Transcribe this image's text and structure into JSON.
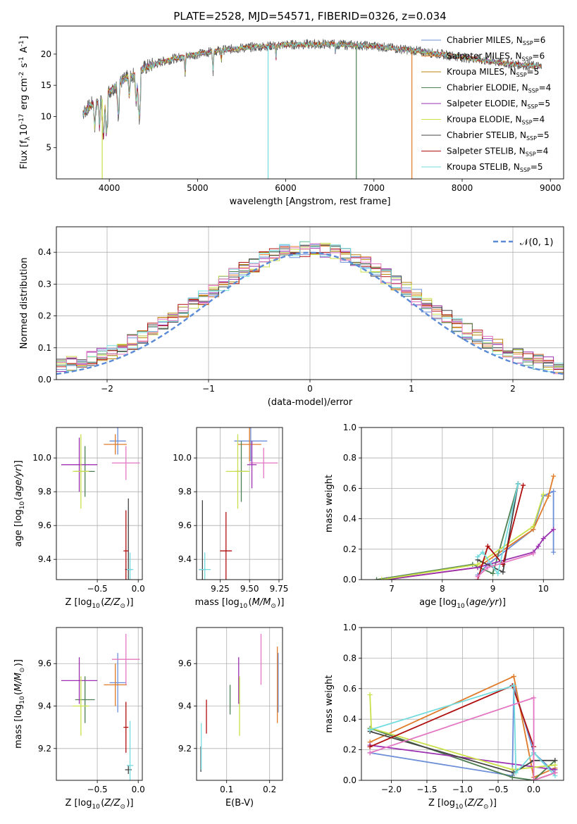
{
  "title": "PLATE=2528, MJD=54571, FIBERID=0326, z=0.034",
  "models": [
    {
      "name": "Chabrier MILES",
      "nssp": "6",
      "color": "#6c8fd8"
    },
    {
      "name": "Salpeter MILES",
      "nssp": "6",
      "color": "#e07b2a"
    },
    {
      "name": "Kroupa MILES",
      "nssp": "5",
      "color": "#b8860b"
    },
    {
      "name": "Chabrier ELODIE",
      "nssp": "4",
      "color": "#4e7f52"
    },
    {
      "name": "Salpeter ELODIE",
      "nssp": "5",
      "color": "#9b30b0"
    },
    {
      "name": "Kroupa ELODIE",
      "nssp": "4",
      "color": "#c9e04a"
    },
    {
      "name": "Chabrier STELIB",
      "nssp": "5",
      "color": "#444444"
    },
    {
      "name": "Salpeter STELIB",
      "nssp": "4",
      "color": "#b01010"
    },
    {
      "name": "Kroupa STELIB",
      "nssp": "5",
      "color": "#74dcde"
    }
  ],
  "chart_data": [
    {
      "type": "line",
      "id": "spectrum",
      "xlabel": "wavelength [Angstrom, rest frame]",
      "ylabel": "Flux [f$_\\lambda$10$^{-17}$ erg cm$^{-2}$ s$^{-1}$ A$^{-1}$]",
      "xlim": [
        3400,
        9150
      ],
      "ylim": [
        0,
        24.5
      ],
      "xticks": [
        4000,
        5000,
        6000,
        7000,
        8000,
        9000
      ],
      "yticks": [
        5,
        10,
        15,
        20
      ],
      "continuum": [
        [
          3700,
          10.5
        ],
        [
          3800,
          12.0
        ],
        [
          3900,
          12.5
        ],
        [
          4000,
          14.0
        ],
        [
          4100,
          15.2
        ],
        [
          4200,
          16.2
        ],
        [
          4300,
          16.8
        ],
        [
          4400,
          17.8
        ],
        [
          4600,
          18.8
        ],
        [
          4800,
          19.5
        ],
        [
          5000,
          20.0
        ],
        [
          5200,
          20.5
        ],
        [
          5500,
          21.0
        ],
        [
          6000,
          21.5
        ],
        [
          6500,
          21.6
        ],
        [
          7000,
          21.3
        ],
        [
          7500,
          20.5
        ],
        [
          8000,
          19.5
        ],
        [
          8500,
          18.5
        ],
        [
          8900,
          18.0
        ]
      ],
      "absorption_features": [
        [
          3730,
          10.0
        ],
        [
          3835,
          7.5
        ],
        [
          3889,
          8.0
        ],
        [
          3933,
          6.0
        ],
        [
          3969,
          6.5
        ],
        [
          4102,
          9.5
        ],
        [
          4227,
          12.5
        ],
        [
          4305,
          11.5
        ],
        [
          4340,
          9.0
        ],
        [
          4861,
          16.5
        ],
        [
          5175,
          17.0
        ],
        [
          5270,
          18.5
        ],
        [
          5890,
          19.0
        ],
        [
          6563,
          20.0
        ]
      ],
      "spikes": [
        [
          3920,
          0.0,
          "#c9e04a"
        ],
        [
          5800,
          0.0,
          "#74dcde"
        ],
        [
          6800,
          0.0,
          "#4e7f52"
        ],
        [
          7430,
          0.0,
          "#e07b2a"
        ]
      ]
    },
    {
      "type": "line",
      "id": "residuals",
      "xlabel": "(data-model)/error",
      "ylabel": "Normed distribution",
      "xlim": [
        -2.5,
        2.5
      ],
      "ylim": [
        0,
        0.48
      ],
      "xticks": [
        -2,
        -1,
        0,
        1,
        2
      ],
      "xticklabels": [
        "−2",
        "−1",
        "0",
        "1",
        "2"
      ],
      "yticks": [
        0.0,
        0.1,
        0.2,
        0.3,
        0.4
      ],
      "yticklabels": [
        "0.0",
        "0.1",
        "0.2",
        "0.3",
        "0.4"
      ],
      "legend": "$\\mathcal{N}(0, 1)$",
      "legend_position": "top-right",
      "bin_width": 0.1,
      "gaussian_peak": 0.399
    },
    {
      "type": "scatter",
      "id": "age_vs_Z",
      "xlabel": "Z [log$_{10}$($Z/Z_\\odot$)]",
      "ylabel": "age  [log$_{10}$($age/yr$)]",
      "xlim": [
        -1.0,
        0.05
      ],
      "ylim": [
        9.28,
        10.18
      ],
      "xticks": [
        -0.5,
        0.0
      ],
      "xticklabels": [
        "−0.5",
        "0.0"
      ],
      "yticks": [
        9.4,
        9.6,
        9.8,
        10.0
      ],
      "yticklabels": [
        "9.4",
        "9.6",
        "9.8",
        "10.0"
      ],
      "points": [
        {
          "x": -0.25,
          "y": 10.1,
          "xerr": 0.1,
          "yerr": 0.08,
          "color": "#6c8fd8"
        },
        {
          "x": -0.28,
          "y": 10.08,
          "xerr": 0.14,
          "yerr": 0.06,
          "color": "#e07b2a"
        },
        {
          "x": -0.15,
          "y": 9.97,
          "xerr": 0.17,
          "yerr": 0.1,
          "color": "#e377c2"
        },
        {
          "x": -0.65,
          "y": 9.92,
          "xerr": 0.12,
          "yerr": 0.15,
          "color": "#4e7f52"
        },
        {
          "x": -0.72,
          "y": 9.96,
          "xerr": 0.22,
          "yerr": 0.16,
          "color": "#9b30b0"
        },
        {
          "x": -0.7,
          "y": 9.92,
          "xerr": 0.1,
          "yerr": 0.22,
          "color": "#c9e04a"
        },
        {
          "x": -0.12,
          "y": 9.34,
          "xerr": 0.04,
          "yerr": 0.42,
          "color": "#444444"
        },
        {
          "x": -0.15,
          "y": 9.45,
          "xerr": 0.03,
          "yerr": 0.24,
          "color": "#b01010"
        },
        {
          "x": -0.1,
          "y": 9.34,
          "xerr": 0.04,
          "yerr": 0.1,
          "color": "#74dcde"
        }
      ]
    },
    {
      "type": "scatter",
      "id": "age_vs_mass",
      "xlabel": "mass [log$_{10}$($M/M_\\odot$)]",
      "ylabel": "",
      "xlim": [
        9.05,
        9.78
      ],
      "ylim": [
        9.28,
        10.18
      ],
      "xticks": [
        9.25,
        9.5,
        9.75
      ],
      "xticklabels": [
        "9.25",
        "9.50",
        "9.75"
      ],
      "yticks": [
        9.4,
        9.6,
        9.8,
        10.0
      ],
      "yticklabels": [
        "9.4",
        "9.6",
        "9.8",
        "10.0"
      ],
      "points": [
        {
          "x": 9.51,
          "y": 10.1,
          "xerr": 0.14,
          "yerr": 0.12,
          "color": "#6c8fd8"
        },
        {
          "x": 9.5,
          "y": 10.08,
          "xerr": 0.1,
          "yerr": 0.1,
          "color": "#e07b2a"
        },
        {
          "x": 9.62,
          "y": 9.97,
          "xerr": 0.12,
          "yerr": 0.09,
          "color": "#e377c2"
        },
        {
          "x": 9.43,
          "y": 9.92,
          "xerr": 0.05,
          "yerr": 0.18,
          "color": "#4e7f52"
        },
        {
          "x": 9.52,
          "y": 9.96,
          "xerr": 0.04,
          "yerr": 0.14,
          "color": "#9b30b0"
        },
        {
          "x": 9.4,
          "y": 9.92,
          "xerr": 0.1,
          "yerr": 0.22,
          "color": "#c9e04a"
        },
        {
          "x": 9.1,
          "y": 9.34,
          "xerr": 0.03,
          "yerr": 0.41,
          "color": "#444444"
        },
        {
          "x": 9.3,
          "y": 9.45,
          "xerr": 0.05,
          "yerr": 0.23,
          "color": "#b01010"
        },
        {
          "x": 9.12,
          "y": 9.34,
          "xerr": 0.05,
          "yerr": 0.1,
          "color": "#74dcde"
        }
      ]
    },
    {
      "type": "line",
      "id": "massweight_vs_age",
      "xlabel": "age  [log$_{10}$($age/yr$)]",
      "ylabel": "mass weight",
      "xlim": [
        6.4,
        10.4
      ],
      "ylim": [
        0,
        1.0
      ],
      "xticks": [
        7,
        8,
        9,
        10
      ],
      "yticks": [
        0.0,
        0.2,
        0.4,
        0.6,
        0.8,
        1.0
      ],
      "yticklabels": [
        "0.0",
        "0.2",
        "0.4",
        "0.6",
        "0.8",
        "1.0"
      ],
      "series": [
        {
          "color": "#6c8fd8",
          "points": [
            [
              8.7,
              0.03
            ],
            [
              8.9,
              0.1
            ],
            [
              9.8,
              0.33
            ],
            [
              10.0,
              0.55
            ],
            [
              10.2,
              0.58
            ],
            [
              10.2,
              0.18
            ]
          ]
        },
        {
          "color": "#e07b2a",
          "points": [
            [
              6.9,
              0.0
            ],
            [
              8.7,
              0.08
            ],
            [
              9.8,
              0.33
            ],
            [
              10.1,
              0.55
            ],
            [
              10.2,
              0.68
            ]
          ]
        },
        {
          "color": "#4e7f52",
          "points": [
            [
              6.7,
              0.0
            ],
            [
              8.6,
              0.1
            ],
            [
              9.0,
              0.04
            ],
            [
              9.5,
              0.63
            ]
          ]
        },
        {
          "color": "#9b30b0",
          "points": [
            [
              6.9,
              0.0
            ],
            [
              8.7,
              0.08
            ],
            [
              9.8,
              0.18
            ],
            [
              9.9,
              0.22
            ],
            [
              10.0,
              0.27
            ],
            [
              10.2,
              0.33
            ]
          ]
        },
        {
          "color": "#c9e04a",
          "points": [
            [
              6.8,
              0.0
            ],
            [
              8.7,
              0.1
            ],
            [
              9.8,
              0.35
            ],
            [
              10.0,
              0.56
            ]
          ]
        },
        {
          "color": "#444444",
          "points": [
            [
              8.7,
              0.13
            ],
            [
              9.2,
              0.05
            ],
            [
              9.5,
              0.63
            ]
          ]
        },
        {
          "color": "#b01010",
          "points": [
            [
              8.7,
              0.0
            ],
            [
              8.9,
              0.22
            ],
            [
              9.2,
              0.1
            ],
            [
              9.6,
              0.62
            ]
          ]
        },
        {
          "color": "#74dcde",
          "points": [
            [
              8.7,
              0.15
            ],
            [
              8.8,
              0.18
            ],
            [
              9.1,
              0.04
            ],
            [
              9.5,
              0.63
            ]
          ]
        },
        {
          "color": "#e377c2",
          "points": [
            [
              8.7,
              0.02
            ],
            [
              8.9,
              0.08
            ],
            [
              9.8,
              0.17
            ]
          ]
        }
      ]
    },
    {
      "type": "scatter",
      "id": "mass_vs_Z",
      "xlabel": "Z [log$_{10}$($Z/Z_\\odot$)]",
      "ylabel": "mass [log$_{10}$($M/M_\\odot$)]",
      "xlim": [
        -1.0,
        0.05
      ],
      "ylim": [
        9.05,
        9.77
      ],
      "xticks": [
        -0.5,
        0.0
      ],
      "xticklabels": [
        "−0.5",
        "0.0"
      ],
      "yticks": [
        9.2,
        9.4,
        9.6
      ],
      "yticklabels": [
        "9.2",
        "9.4",
        "9.6"
      ],
      "points": [
        {
          "x": -0.25,
          "y": 9.51,
          "xerr": 0.1,
          "yerr": 0.14,
          "color": "#6c8fd8"
        },
        {
          "x": -0.28,
          "y": 9.5,
          "xerr": 0.14,
          "yerr": 0.1,
          "color": "#e07b2a"
        },
        {
          "x": -0.15,
          "y": 9.62,
          "xerr": 0.17,
          "yerr": 0.12,
          "color": "#e377c2"
        },
        {
          "x": -0.65,
          "y": 9.43,
          "xerr": 0.12,
          "yerr": 0.11,
          "color": "#4e7f52"
        },
        {
          "x": -0.72,
          "y": 9.52,
          "xerr": 0.22,
          "yerr": 0.11,
          "color": "#9b30b0"
        },
        {
          "x": -0.7,
          "y": 9.4,
          "xerr": 0.1,
          "yerr": 0.14,
          "color": "#c9e04a"
        },
        {
          "x": -0.12,
          "y": 9.1,
          "xerr": 0.04,
          "yerr": 0.02,
          "color": "#444444"
        },
        {
          "x": -0.15,
          "y": 9.3,
          "xerr": 0.03,
          "yerr": 0.12,
          "color": "#b01010"
        },
        {
          "x": -0.1,
          "y": 9.12,
          "xerr": 0.04,
          "yerr": 0.21,
          "color": "#74dcde"
        }
      ]
    },
    {
      "type": "scatter",
      "id": "mass_vs_ebv",
      "xlabel": "E(B-V)",
      "ylabel": "",
      "xlim": [
        0.03,
        0.23
      ],
      "ylim": [
        9.05,
        9.77
      ],
      "xticks": [
        0.1,
        0.2
      ],
      "xticklabels": [
        "0.1",
        "0.2"
      ],
      "yticks": [
        9.2,
        9.4,
        9.6
      ],
      "yticklabels": [
        "9.2",
        "9.4",
        "9.6"
      ],
      "points": [
        {
          "x": 0.22,
          "y": 9.51,
          "yerr": 0.14,
          "color": "#6c8fd8"
        },
        {
          "x": 0.218,
          "y": 9.5,
          "yerr": 0.18,
          "color": "#e07b2a"
        },
        {
          "x": 0.18,
          "y": 9.62,
          "yerr": 0.12,
          "color": "#e377c2"
        },
        {
          "x": 0.108,
          "y": 9.43,
          "yerr": 0.07,
          "color": "#4e7f52"
        },
        {
          "x": 0.128,
          "y": 9.52,
          "yerr": 0.11,
          "color": "#9b30b0"
        },
        {
          "x": 0.13,
          "y": 9.4,
          "yerr": 0.14,
          "color": "#c9e04a"
        },
        {
          "x": 0.04,
          "y": 9.15,
          "yerr": 0.06,
          "color": "#444444"
        },
        {
          "x": 0.053,
          "y": 9.35,
          "yerr": 0.08,
          "color": "#b01010"
        },
        {
          "x": 0.041,
          "y": 9.21,
          "yerr": 0.11,
          "color": "#74dcde"
        }
      ]
    },
    {
      "type": "line",
      "id": "massweight_vs_Z",
      "xlabel": "Z [log$_{10}$($Z/Z_\\odot$)]",
      "ylabel": "mass weight",
      "xlim": [
        -2.42,
        0.42
      ],
      "ylim": [
        0,
        1.0
      ],
      "xticks": [
        -2.0,
        -1.5,
        -1.0,
        -0.5,
        0.0
      ],
      "xticklabels": [
        "−2.0",
        "−1.5",
        "−1.0",
        "−0.5",
        "0.0"
      ],
      "yticks": [
        0.0,
        0.2,
        0.4,
        0.6,
        0.8,
        1.0
      ],
      "yticklabels": [
        "0.0",
        "0.2",
        "0.4",
        "0.6",
        "0.8",
        "1.0"
      ],
      "series": [
        {
          "color": "#6c8fd8",
          "points": [
            [
              -2.3,
              0.18
            ],
            [
              -0.3,
              0.03
            ],
            [
              -0.28,
              0.62
            ],
            [
              0.0,
              0.18
            ],
            [
              0.3,
              0.05
            ]
          ]
        },
        {
          "color": "#e07b2a",
          "points": [
            [
              -2.3,
              0.25
            ],
            [
              -0.28,
              0.68
            ],
            [
              -0.0,
              0.02
            ],
            [
              0.3,
              0.08
            ]
          ]
        },
        {
          "color": "#4e7f52",
          "points": [
            [
              -2.3,
              0.34
            ],
            [
              -0.3,
              0.02
            ],
            [
              0.0,
              0.0
            ],
            [
              0.3,
              0.13
            ]
          ]
        },
        {
          "color": "#9b30b0",
          "points": [
            [
              -2.3,
              0.23
            ],
            [
              0.3,
              0.07
            ]
          ]
        },
        {
          "color": "#c9e04a",
          "points": [
            [
              -2.3,
              0.56
            ],
            [
              -2.28,
              0.34
            ],
            [
              -0.3,
              0.07
            ],
            [
              0.3,
              0.1
            ]
          ]
        },
        {
          "color": "#444444",
          "points": [
            [
              -2.3,
              0.32
            ],
            [
              -0.28,
              0.05
            ],
            [
              0.0,
              0.13
            ],
            [
              0.3,
              0.13
            ]
          ]
        },
        {
          "color": "#b01010",
          "points": [
            [
              -2.3,
              0.22
            ],
            [
              -0.3,
              0.62
            ],
            [
              0.0,
              0.22
            ],
            [
              0.0,
              0.0
            ],
            [
              0.3,
              0.05
            ]
          ]
        },
        {
          "color": "#74dcde",
          "points": [
            [
              -2.3,
              0.33
            ],
            [
              -0.28,
              0.62
            ],
            [
              -0.25,
              0.05
            ],
            [
              0.0,
              0.18
            ],
            [
              0.3,
              0.03
            ]
          ]
        },
        {
          "color": "#e377c2",
          "points": [
            [
              -2.3,
              0.18
            ],
            [
              0.0,
              0.54
            ],
            [
              0.0,
              0.0
            ],
            [
              0.3,
              0.05
            ]
          ]
        }
      ]
    }
  ]
}
